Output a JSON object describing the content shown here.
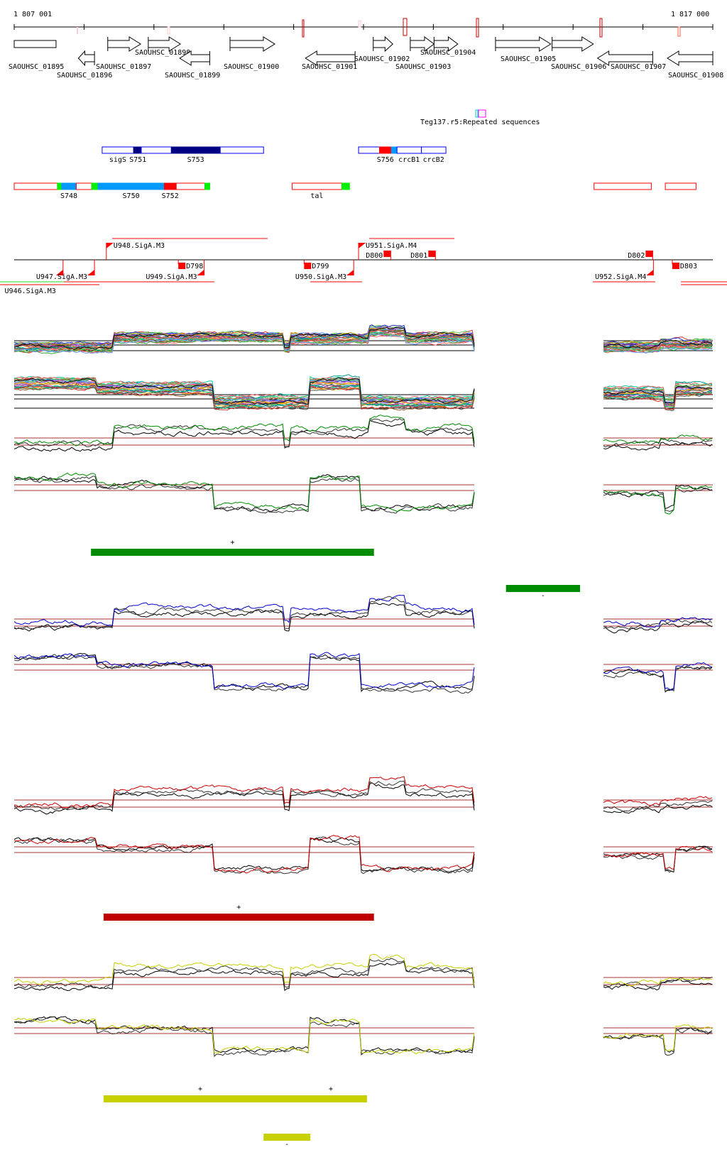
{
  "ruler": {
    "start_label": "1 807 001",
    "end_label": "1 817 000",
    "start": 1807001,
    "end": 1817000
  },
  "genes": [
    {
      "name": "SAOUHSC_01895",
      "start": 1807001,
      "end": 1807600,
      "strand": "+",
      "partial": true
    },
    {
      "name": "SAOUHSC_01896",
      "start": 1807920,
      "end": 1808150,
      "strand": "-"
    },
    {
      "name": "SAOUHSC_01897",
      "start": 1808340,
      "end": 1808810,
      "strand": "+"
    },
    {
      "name": "SAOUHSC_01898",
      "start": 1808920,
      "end": 1809380,
      "strand": "+"
    },
    {
      "name": "SAOUHSC_01899",
      "start": 1809370,
      "end": 1809800,
      "strand": "-"
    },
    {
      "name": "SAOUHSC_01900",
      "start": 1810090,
      "end": 1810730,
      "strand": "+"
    },
    {
      "name": "SAOUHSC_01901",
      "start": 1811170,
      "end": 1811880,
      "strand": "-"
    },
    {
      "name": "SAOUHSC_01902",
      "start": 1812140,
      "end": 1812420,
      "strand": "+"
    },
    {
      "name": "SAOUHSC_01903",
      "start": 1812670,
      "end": 1813010,
      "strand": "+"
    },
    {
      "name": "SAOUHSC_01904",
      "start": 1813010,
      "end": 1813350,
      "strand": "+"
    },
    {
      "name": "SAOUHSC_01905",
      "start": 1813890,
      "end": 1814680,
      "strand": "+"
    },
    {
      "name": "SAOUHSC_01906",
      "start": 1814700,
      "end": 1815290,
      "strand": "+"
    },
    {
      "name": "SAOUHSC_01907",
      "start": 1815350,
      "end": 1816140,
      "strand": "-"
    },
    {
      "name": "SAOUHSC_01908",
      "start": 1816350,
      "end": 1817000,
      "strand": "-"
    }
  ],
  "repeat": {
    "label": "Teg137.r5:Repeated sequences",
    "colors": [
      "#00c0c0",
      "#ff00ff"
    ]
  },
  "blue_features": [
    {
      "label": "sigS",
      "x0": 1808260,
      "x1": 1808710,
      "fill": "#ffffff"
    },
    {
      "label": "S751",
      "x0": 1808710,
      "x1": 1808820,
      "fill": "#000080"
    },
    {
      "label": "",
      "x0": 1808820,
      "x1": 1809250,
      "fill": "#ffffff"
    },
    {
      "label": "S753",
      "x0": 1809250,
      "x1": 1809950,
      "fill": "#000080"
    },
    {
      "label": "",
      "x0": 1809950,
      "x1": 1810570,
      "fill": "#ffffff"
    },
    {
      "label": "",
      "x0": 1811930,
      "x1": 1812230,
      "fill": "#ffffff"
    },
    {
      "label": "S756",
      "x0": 1812230,
      "x1": 1812400,
      "fill": "#ff0000"
    },
    {
      "label": "",
      "x0": 1812400,
      "x1": 1812480,
      "fill": "#0099ff"
    },
    {
      "label": "crcB1",
      "x0": 1812480,
      "x1": 1812830,
      "fill": "#ffffff"
    },
    {
      "label": "crcB2",
      "x0": 1812830,
      "x1": 1813180,
      "fill": "#ffffff"
    }
  ],
  "red_features": [
    {
      "label": "",
      "x0": 1807001,
      "x1": 1807620,
      "fill": "#ffffff"
    },
    {
      "label": "",
      "x0": 1807620,
      "x1": 1807680,
      "fill": "#00ee00"
    },
    {
      "label": "S748",
      "x0": 1807680,
      "x1": 1807890,
      "fill": "#0099ff"
    },
    {
      "label": "",
      "x0": 1807890,
      "x1": 1808110,
      "fill": "#ffffff"
    },
    {
      "label": "",
      "x0": 1808110,
      "x1": 1808200,
      "fill": "#00ee00"
    },
    {
      "label": "S750",
      "x0": 1808200,
      "x1": 1809150,
      "fill": "#0099ff"
    },
    {
      "label": "S752",
      "x0": 1809150,
      "x1": 1809320,
      "fill": "#ff0000"
    },
    {
      "label": "",
      "x0": 1809320,
      "x1": 1809730,
      "fill": "#ffffff"
    },
    {
      "label": "",
      "x0": 1809730,
      "x1": 1809800,
      "fill": "#00ee00"
    },
    {
      "label": "tal",
      "x0": 1810980,
      "x1": 1811690,
      "fill": "#ffffff"
    },
    {
      "label": "",
      "x0": 1811690,
      "x1": 1811800,
      "fill": "#00ee00"
    },
    {
      "label": "",
      "x0": 1815300,
      "x1": 1816120,
      "fill": "#ffffff"
    },
    {
      "label": "",
      "x0": 1816320,
      "x1": 1816760,
      "fill": "#ffffff"
    }
  ],
  "promoters": [
    {
      "label": "U948.SigA.M3",
      "pos": 1808320,
      "strand": "+"
    },
    {
      "label": "U951.SigA.M4",
      "pos": 1811930,
      "strand": "+"
    },
    {
      "label": "U946.SigA.M3",
      "pos": 1807700,
      "strand": "-"
    },
    {
      "label": "U947.SigA.M3",
      "pos": 1808150,
      "strand": "-"
    },
    {
      "label": "U949.SigA.M3",
      "pos": 1809720,
      "strand": "-"
    },
    {
      "label": "U950.SigA.M3",
      "pos": 1811860,
      "strand": "-"
    },
    {
      "label": "U952.SigA.M4",
      "pos": 1816150,
      "strand": "-"
    }
  ],
  "terminators": [
    {
      "label": "D798",
      "pos": 1809350,
      "strand": "-"
    },
    {
      "label": "D799",
      "pos": 1811150,
      "strand": "-"
    },
    {
      "label": "D800",
      "pos": 1812390,
      "strand": "+"
    },
    {
      "label": "D801",
      "pos": 1813030,
      "strand": "+"
    },
    {
      "label": "D802",
      "pos": 1816140,
      "strand": "+"
    },
    {
      "label": "D803",
      "pos": 1816420,
      "strand": "-"
    }
  ],
  "condition_colors": [
    "#008c00",
    "#0000cc",
    "#cc0000",
    "#c8d000"
  ],
  "segments": [
    {
      "color": "#008c00",
      "label": "+",
      "start": 1808100,
      "end": 1812150
    },
    {
      "color": "#008c00",
      "label": "-",
      "start": 1814040,
      "end": 1815100
    },
    {
      "color": "#c00000",
      "label": "+",
      "start": 1808280,
      "end": 1812150
    },
    {
      "color": "#c8d000",
      "label": "+",
      "start": 1808280,
      "end": 1812050
    },
    {
      "color": "#c8d000",
      "label": "+",
      "start": 1808280,
      "end": 1812050
    },
    {
      "color": "#c8d000",
      "label": "-",
      "start": 1810570,
      "end": 1811240
    }
  ]
}
